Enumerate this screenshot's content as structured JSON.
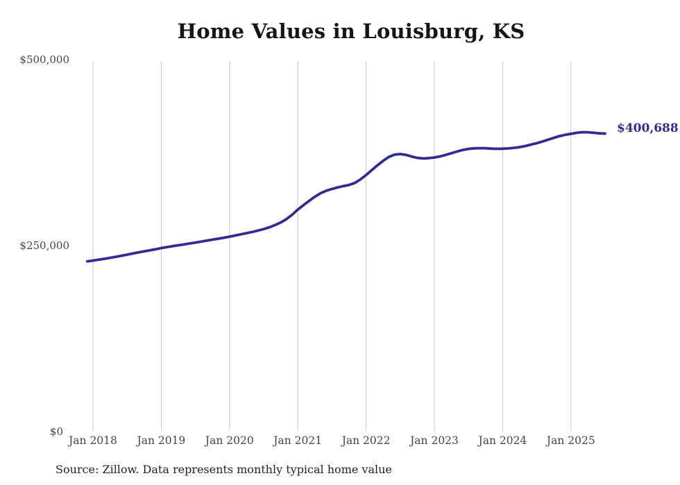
{
  "header": {
    "title": "Home Values in Louisburg, KS"
  },
  "footer": {
    "source": "Source: Zillow. Data represents monthly typical home value"
  },
  "colors": {
    "line": "#312B93",
    "end_label": "#312B93",
    "grid": "#CBCBCB",
    "axis_text": "#444444",
    "title_text": "#151515",
    "background": "#FFFFFF"
  },
  "chart_data": {
    "type": "line",
    "title": "Home Values in Louisburg, KS",
    "xlabel": "",
    "ylabel": "",
    "ylim": [
      0,
      500000
    ],
    "grid": "vertical-only",
    "legend_position": "none",
    "series_name": "Monthly typical home value",
    "end_label": "$400,688",
    "end_value": 400688,
    "y_ticks": [
      {
        "label": "$0",
        "value": 0
      },
      {
        "label": "$250,000",
        "value": 250000
      },
      {
        "label": "$500,000",
        "value": 500000
      }
    ],
    "x_ticks": [
      {
        "label": "Jan 2018",
        "year": 2018
      },
      {
        "label": "Jan 2019",
        "year": 2019
      },
      {
        "label": "Jan 2020",
        "year": 2020
      },
      {
        "label": "Jan 2021",
        "year": 2021
      },
      {
        "label": "Jan 2022",
        "year": 2022
      },
      {
        "label": "Jan 2023",
        "year": 2023
      },
      {
        "label": "Jan 2024",
        "year": 2024
      },
      {
        "label": "Jan 2025",
        "year": 2025
      }
    ],
    "months": [
      "2017-12",
      "2018-01",
      "2018-02",
      "2018-03",
      "2018-04",
      "2018-05",
      "2018-06",
      "2018-07",
      "2018-08",
      "2018-09",
      "2018-10",
      "2018-11",
      "2018-12",
      "2019-01",
      "2019-02",
      "2019-03",
      "2019-04",
      "2019-05",
      "2019-06",
      "2019-07",
      "2019-08",
      "2019-09",
      "2019-10",
      "2019-11",
      "2019-12",
      "2020-01",
      "2020-02",
      "2020-03",
      "2020-04",
      "2020-05",
      "2020-06",
      "2020-07",
      "2020-08",
      "2020-09",
      "2020-10",
      "2020-11",
      "2020-12",
      "2021-01",
      "2021-02",
      "2021-03",
      "2021-04",
      "2021-05",
      "2021-06",
      "2021-07",
      "2021-08",
      "2021-09",
      "2021-10",
      "2021-11",
      "2021-12",
      "2022-01",
      "2022-02",
      "2022-03",
      "2022-04",
      "2022-05",
      "2022-06",
      "2022-07",
      "2022-08",
      "2022-09",
      "2022-10",
      "2022-11",
      "2022-12",
      "2023-01",
      "2023-02",
      "2023-03",
      "2023-04",
      "2023-05",
      "2023-06",
      "2023-07",
      "2023-08",
      "2023-09",
      "2023-10",
      "2023-11",
      "2023-12",
      "2024-01",
      "2024-02",
      "2024-03",
      "2024-04",
      "2024-05",
      "2024-06",
      "2024-07",
      "2024-08",
      "2024-09",
      "2024-10",
      "2024-11",
      "2024-12",
      "2025-01",
      "2025-02",
      "2025-03",
      "2025-04",
      "2025-05",
      "2025-06",
      "2025-07"
    ],
    "values": [
      228800,
      229900,
      231100,
      232300,
      233600,
      235000,
      236400,
      237900,
      239400,
      240900,
      242300,
      243700,
      245100,
      246700,
      248000,
      249300,
      250500,
      251700,
      252900,
      254100,
      255400,
      256700,
      258000,
      259300,
      260600,
      262000,
      263600,
      265200,
      266800,
      268400,
      270200,
      272200,
      274600,
      277600,
      281200,
      285600,
      291500,
      298500,
      304500,
      310300,
      315800,
      320400,
      323800,
      326200,
      328300,
      330000,
      331500,
      334200,
      339000,
      345000,
      351500,
      358000,
      364000,
      369200,
      372300,
      373100,
      372000,
      369800,
      368000,
      367200,
      367600,
      368500,
      370000,
      372000,
      374300,
      376600,
      378600,
      380000,
      380800,
      381100,
      380900,
      380400,
      380100,
      380300,
      380700,
      381400,
      382500,
      384000,
      385800,
      387800,
      390000,
      392400,
      394900,
      397300,
      399000,
      400300,
      401700,
      402500,
      402400,
      401700,
      400900,
      400688
    ]
  }
}
